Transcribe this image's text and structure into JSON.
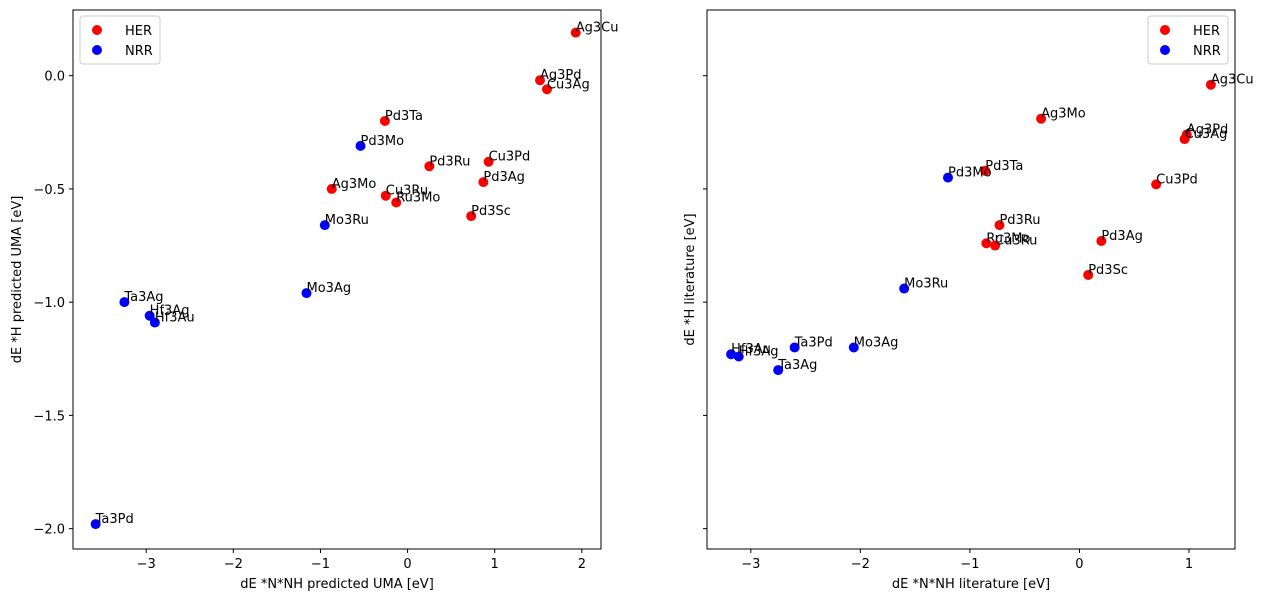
{
  "chart_data": [
    {
      "type": "scatter",
      "xlabel": "dE *N*NH predicted UMA [eV]",
      "ylabel": "dE *H predicted UMA [eV]",
      "xlim": [
        -3.84,
        2.22
      ],
      "ylim": [
        -2.09,
        0.29
      ],
      "xticks": [
        -3,
        -2,
        -1,
        0,
        1,
        2
      ],
      "xtick_labels": [
        "−3",
        "−2",
        "−1",
        "0",
        "1",
        "2"
      ],
      "yticks": [
        -2.0,
        -1.5,
        -1.0,
        -0.5,
        0.0
      ],
      "ytick_labels": [
        "−2.0",
        "−1.5",
        "−1.0",
        "−0.5",
        "0.0"
      ],
      "legend": {
        "position": "upper-left",
        "entries": [
          "HER",
          "NRR"
        ]
      },
      "series": [
        {
          "name": "HER",
          "color": "#ff0000",
          "points": [
            {
              "label": "Ag3Cu",
              "x": 1.93,
              "y": 0.19
            },
            {
              "label": "Ag3Pd",
              "x": 1.52,
              "y": -0.02
            },
            {
              "label": "Cu3Ag",
              "x": 1.6,
              "y": -0.06
            },
            {
              "label": "Pd3Ta",
              "x": -0.26,
              "y": -0.2
            },
            {
              "label": "Pd3Ru",
              "x": 0.25,
              "y": -0.4
            },
            {
              "label": "Cu3Pd",
              "x": 0.93,
              "y": -0.38
            },
            {
              "label": "Pd3Ag",
              "x": 0.87,
              "y": -0.47
            },
            {
              "label": "Ag3Mo",
              "x": -0.87,
              "y": -0.5
            },
            {
              "label": "Cu3Ru",
              "x": -0.25,
              "y": -0.53
            },
            {
              "label": "Ru3Mo",
              "x": -0.13,
              "y": -0.56
            },
            {
              "label": "Pd3Sc",
              "x": 0.73,
              "y": -0.62
            }
          ]
        },
        {
          "name": "NRR",
          "color": "#0000ff",
          "points": [
            {
              "label": "Pd3Mo",
              "x": -0.54,
              "y": -0.31
            },
            {
              "label": "Mo3Ru",
              "x": -0.95,
              "y": -0.66
            },
            {
              "label": "Mo3Ag",
              "x": -1.16,
              "y": -0.96
            },
            {
              "label": "Ta3Ag",
              "x": -3.25,
              "y": -1.0
            },
            {
              "label": "Hf3Ag",
              "x": -2.96,
              "y": -1.06
            },
            {
              "label": "Hf3Au",
              "x": -2.9,
              "y": -1.09
            },
            {
              "label": "Ta3Pd",
              "x": -3.58,
              "y": -1.98
            }
          ]
        }
      ]
    },
    {
      "type": "scatter",
      "xlabel": "dE *N*NH literature [eV]",
      "ylabel": "dE *H literature [eV]",
      "xlim": [
        -3.4,
        1.42
      ],
      "ylim": [
        -2.09,
        0.29
      ],
      "xticks": [
        -3,
        -2,
        -1,
        0,
        1
      ],
      "xtick_labels": [
        "−3",
        "−2",
        "−1",
        "0",
        "1"
      ],
      "yticks": [
        -2.0,
        -1.5,
        -1.0,
        -0.5,
        0.0
      ],
      "legend": {
        "position": "upper-right",
        "entries": [
          "HER",
          "NRR"
        ]
      },
      "series": [
        {
          "name": "HER",
          "color": "#ff0000",
          "points": [
            {
              "label": "Ag3Cu",
              "x": 1.2,
              "y": -0.04
            },
            {
              "label": "Ag3Mo",
              "x": -0.35,
              "y": -0.19
            },
            {
              "label": "Ag3Pd",
              "x": 0.98,
              "y": -0.26
            },
            {
              "label": "Cu3Ag",
              "x": 0.96,
              "y": -0.28
            },
            {
              "label": "Pd3Ta",
              "x": -0.86,
              "y": -0.42
            },
            {
              "label": "Cu3Pd",
              "x": 0.7,
              "y": -0.48
            },
            {
              "label": "Pd3Ru",
              "x": -0.73,
              "y": -0.66
            },
            {
              "label": "Ru3Mo",
              "x": -0.85,
              "y": -0.74
            },
            {
              "label": "Cu3Ru",
              "x": -0.77,
              "y": -0.75
            },
            {
              "label": "Pd3Ag",
              "x": 0.2,
              "y": -0.73
            },
            {
              "label": "Pd3Sc",
              "x": 0.08,
              "y": -0.88
            }
          ]
        },
        {
          "name": "NRR",
          "color": "#0000ff",
          "points": [
            {
              "label": "Pd3Mo",
              "x": -1.2,
              "y": -0.45
            },
            {
              "label": "Mo3Ru",
              "x": -1.6,
              "y": -0.94
            },
            {
              "label": "Ta3Pd",
              "x": -2.6,
              "y": -1.2
            },
            {
              "label": "Mo3Ag",
              "x": -2.06,
              "y": -1.2
            },
            {
              "label": "Hf3Au",
              "x": -3.18,
              "y": -1.23
            },
            {
              "label": "Hf3Ag",
              "x": -3.11,
              "y": -1.24
            },
            {
              "label": "Ta3Ag",
              "x": -2.75,
              "y": -1.3
            }
          ]
        }
      ]
    }
  ]
}
